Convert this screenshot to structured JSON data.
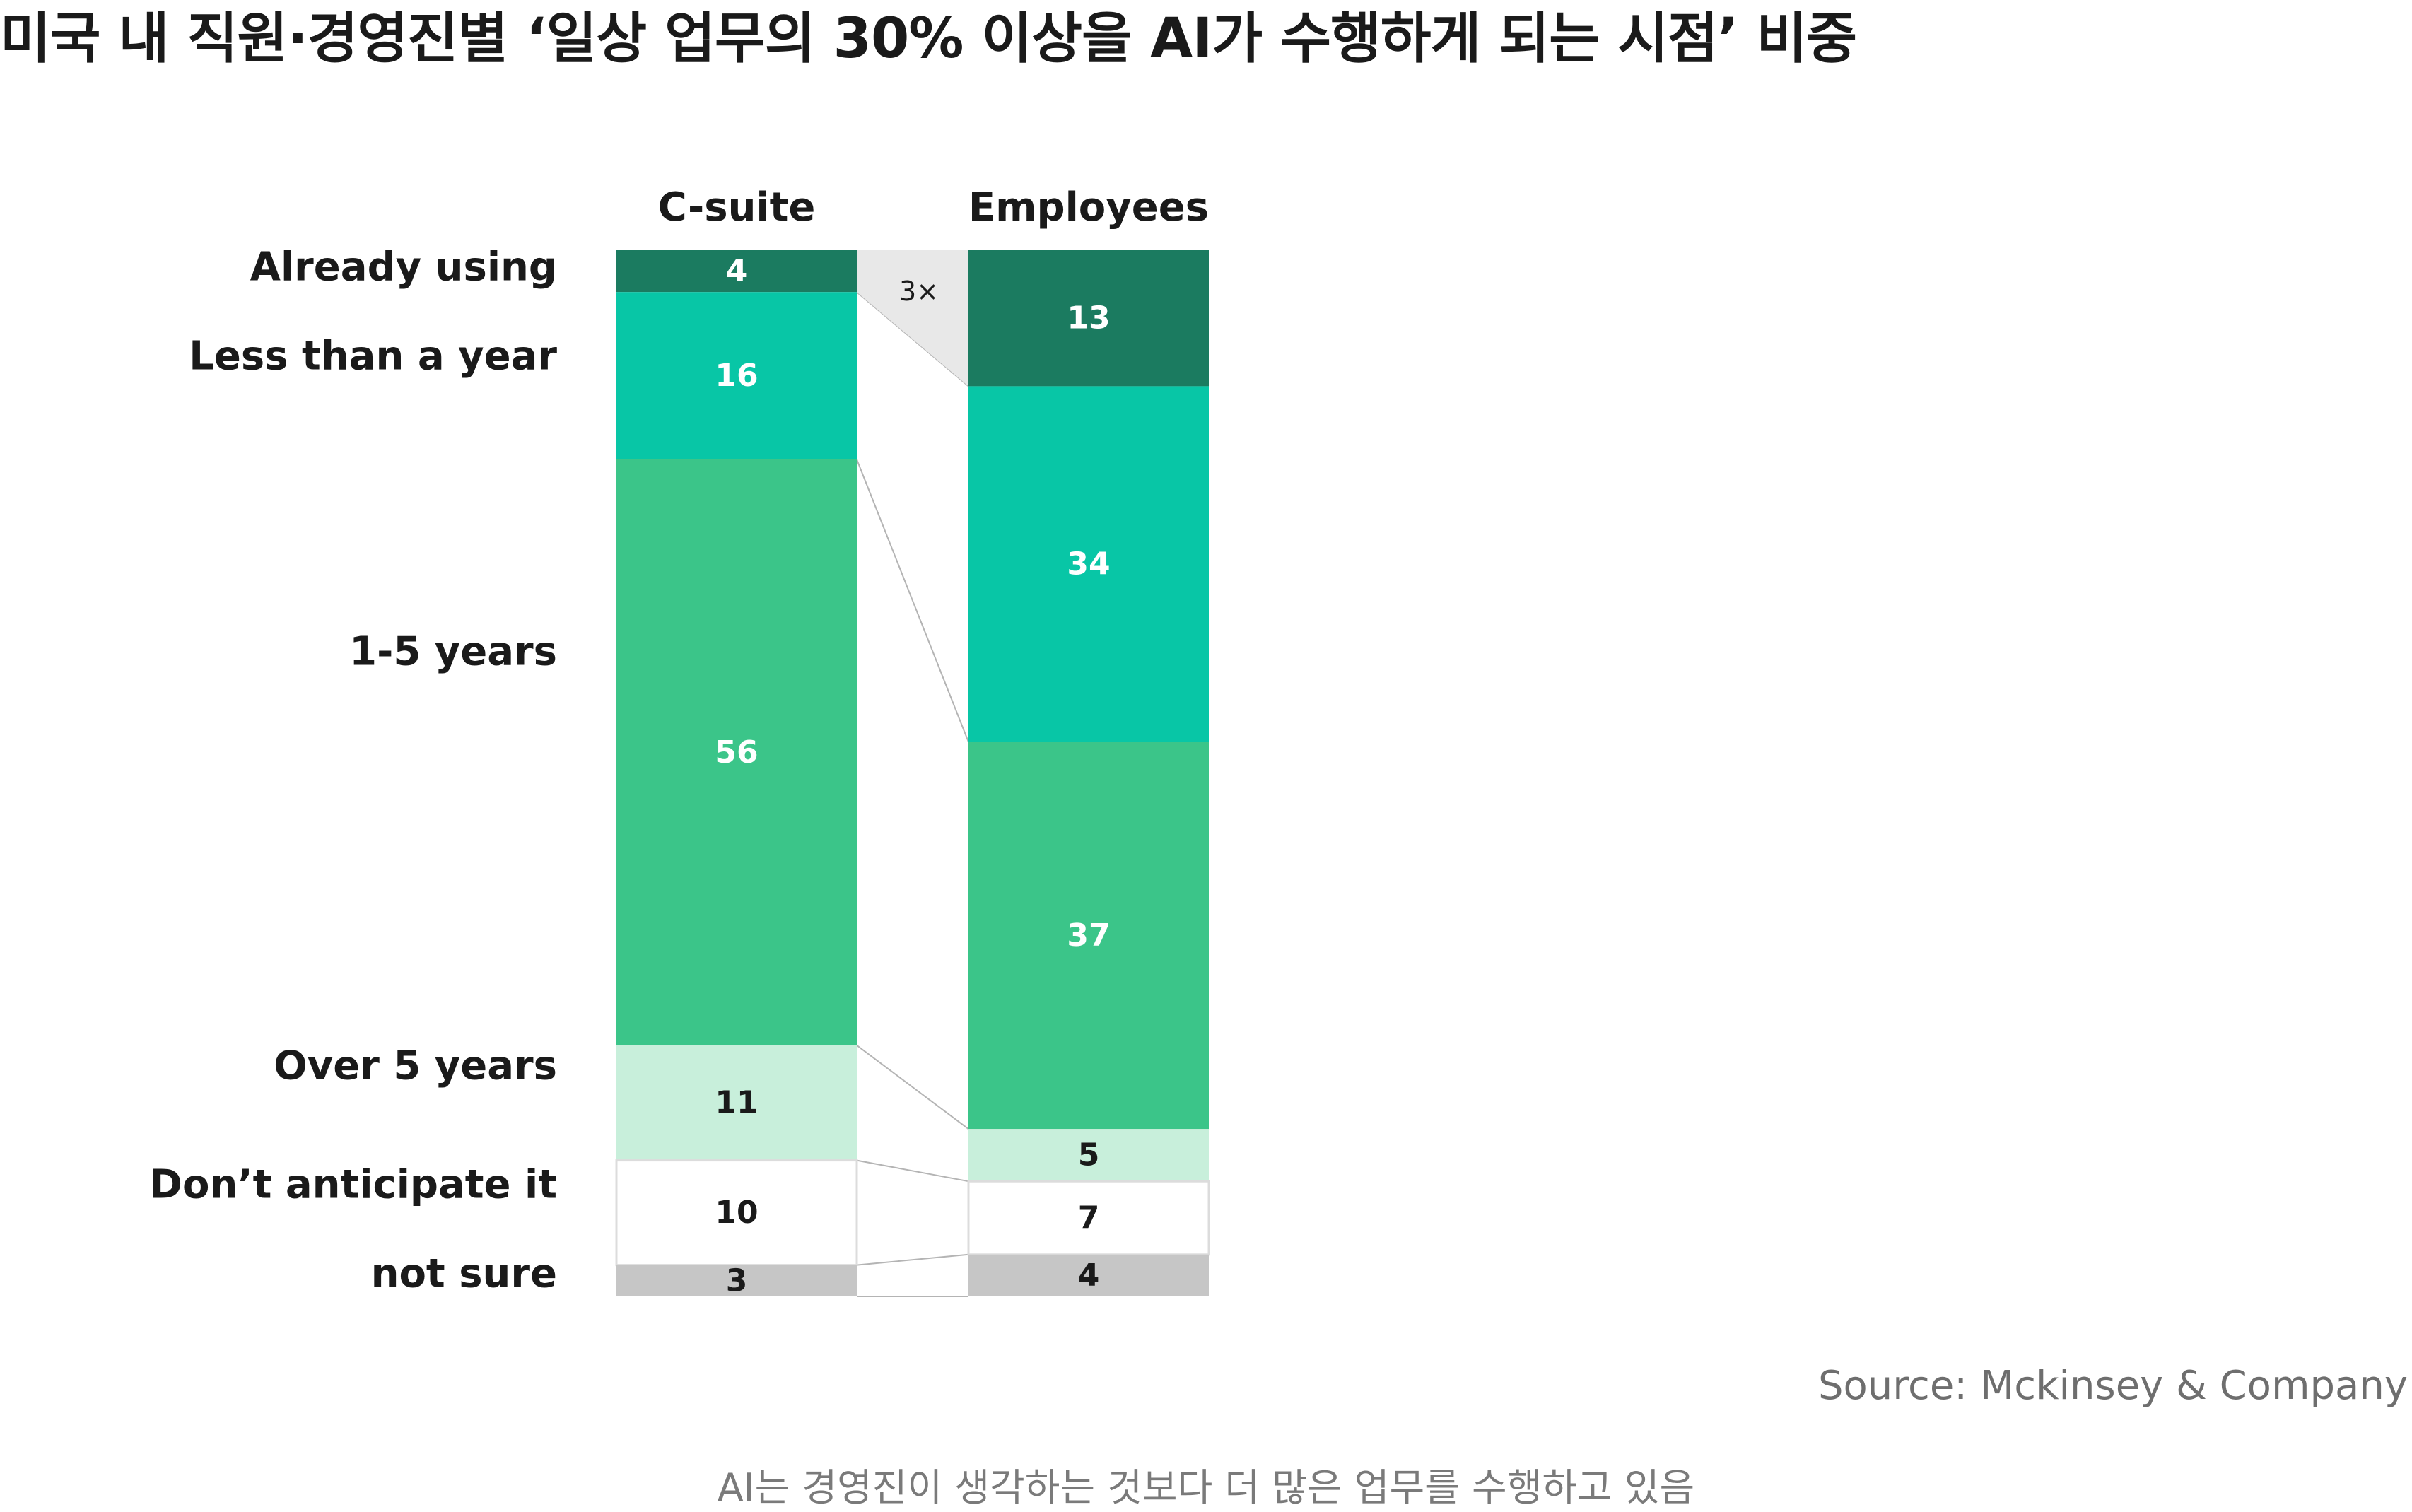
{
  "title": "미국 내 직원·경영진별 ‘일상 업무의 30% 이상을 AI가 수행하게 되는 시점’ 비중",
  "source": "Source: Mckinsey & Company",
  "caption": "AI는 경영진이 생각하는 것보다 더 많은 업무를 수행하고 있음",
  "colors": {
    "already": "#1b7b60",
    "less_than_year": "#08c6a6",
    "one_to_five": "#3bc589",
    "over_five": "#c8efdb",
    "dont_anticipate": "#ffffff",
    "not_sure": "#c6c6c6",
    "connector": "#b4b4b4",
    "multiplier_bg": "#e8e8e8"
  },
  "chart_data": {
    "type": "bar",
    "stacked": true,
    "unit": "%",
    "categories": [
      "C-suite",
      "Employees"
    ],
    "segments": [
      "Already using",
      "Less than a year",
      "1-5 years",
      "Over 5 years",
      "Don’t anticipate it",
      "not sure"
    ],
    "series": [
      {
        "name": "Already using",
        "values": [
          4,
          13
        ]
      },
      {
        "name": "Less than a year",
        "values": [
          16,
          34
        ]
      },
      {
        "name": "1-5 years",
        "values": [
          56,
          37
        ]
      },
      {
        "name": "Over 5 years",
        "values": [
          11,
          5
        ]
      },
      {
        "name": "Don’t anticipate it",
        "values": [
          10,
          7
        ]
      },
      {
        "name": "not sure",
        "values": [
          3,
          4
        ]
      }
    ],
    "annotation": "3×",
    "title": "미국 내 직원·경영진별 ‘일상 업무의 30% 이상을 AI가 수행하게 되는 시점’ 비중"
  }
}
